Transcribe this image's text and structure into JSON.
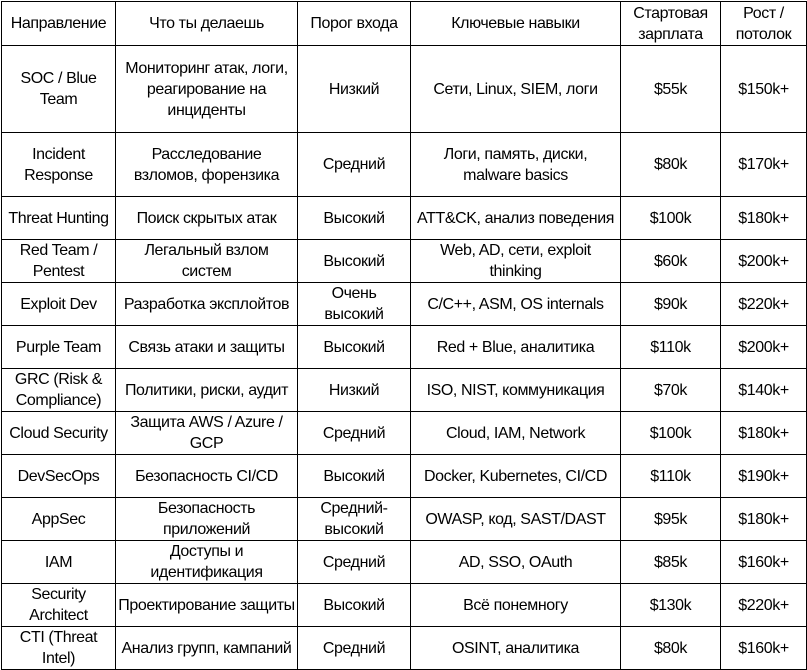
{
  "headers": [
    "Направление",
    "Что ты делаешь",
    "Порог входа",
    "Ключевые навыки",
    "Стартовая зарплата",
    "Рост / потолок"
  ],
  "rows": [
    [
      "SOC / Blue Team",
      "Мониторинг атак, логи, реагирование на инциденты",
      "Низкий",
      "Сети, Linux, SIEM, логи",
      "$55k",
      "$150k+"
    ],
    [
      "Incident Response",
      "Расследование взломов, форензика",
      "Средний",
      "Логи, память, диски, malware basics",
      "$80k",
      "$170k+"
    ],
    [
      "Threat Hunting",
      "Поиск скрытых атак",
      "Высокий",
      "ATT&CK, анализ поведения",
      "$100k",
      "$180k+"
    ],
    [
      "Red Team / Pentest",
      "Легальный взлом систем",
      "Высокий",
      "Web, AD, сети, exploit thinking",
      "$60k",
      "$200k+"
    ],
    [
      "Exploit Dev",
      "Разработка эксплойтов",
      "Очень высокий",
      "C/C++, ASM, OS internals",
      "$90k",
      "$220k+"
    ],
    [
      "Purple Team",
      "Связь атаки и защиты",
      "Высокий",
      "Red + Blue, аналитика",
      "$110k",
      "$200k+"
    ],
    [
      "GRC (Risk & Compliance)",
      "Политики, риски, аудит",
      "Низкий",
      "ISO, NIST, коммуникация",
      "$70k",
      "$140k+"
    ],
    [
      "Cloud Security",
      "Защита AWS / Azure / GCP",
      "Средний",
      "Cloud, IAM, Network",
      "$100k",
      "$180k+"
    ],
    [
      "DevSecOps",
      "Безопасность CI/CD",
      "Высокий",
      "Docker, Kubernetes, CI/CD",
      "$110k",
      "$190k+"
    ],
    [
      "AppSec",
      "Безопасность приложений",
      "Средний-высокий",
      "OWASP, код, SAST/DAST",
      "$95k",
      "$180k+"
    ],
    [
      "IAM",
      "Доступы и идентификация",
      "Средний",
      "AD, SSO, OAuth",
      "$85k",
      "$160k+"
    ],
    [
      "Security Architect",
      "Проектирование защиты",
      "Высокий",
      "Всё понемногу",
      "$130k",
      "$220k+"
    ],
    [
      "CTI (Threat Intel)",
      "Анализ групп, кампаний",
      "Средний",
      "OSINT, аналитика",
      "$80k",
      "$160k+"
    ]
  ]
}
